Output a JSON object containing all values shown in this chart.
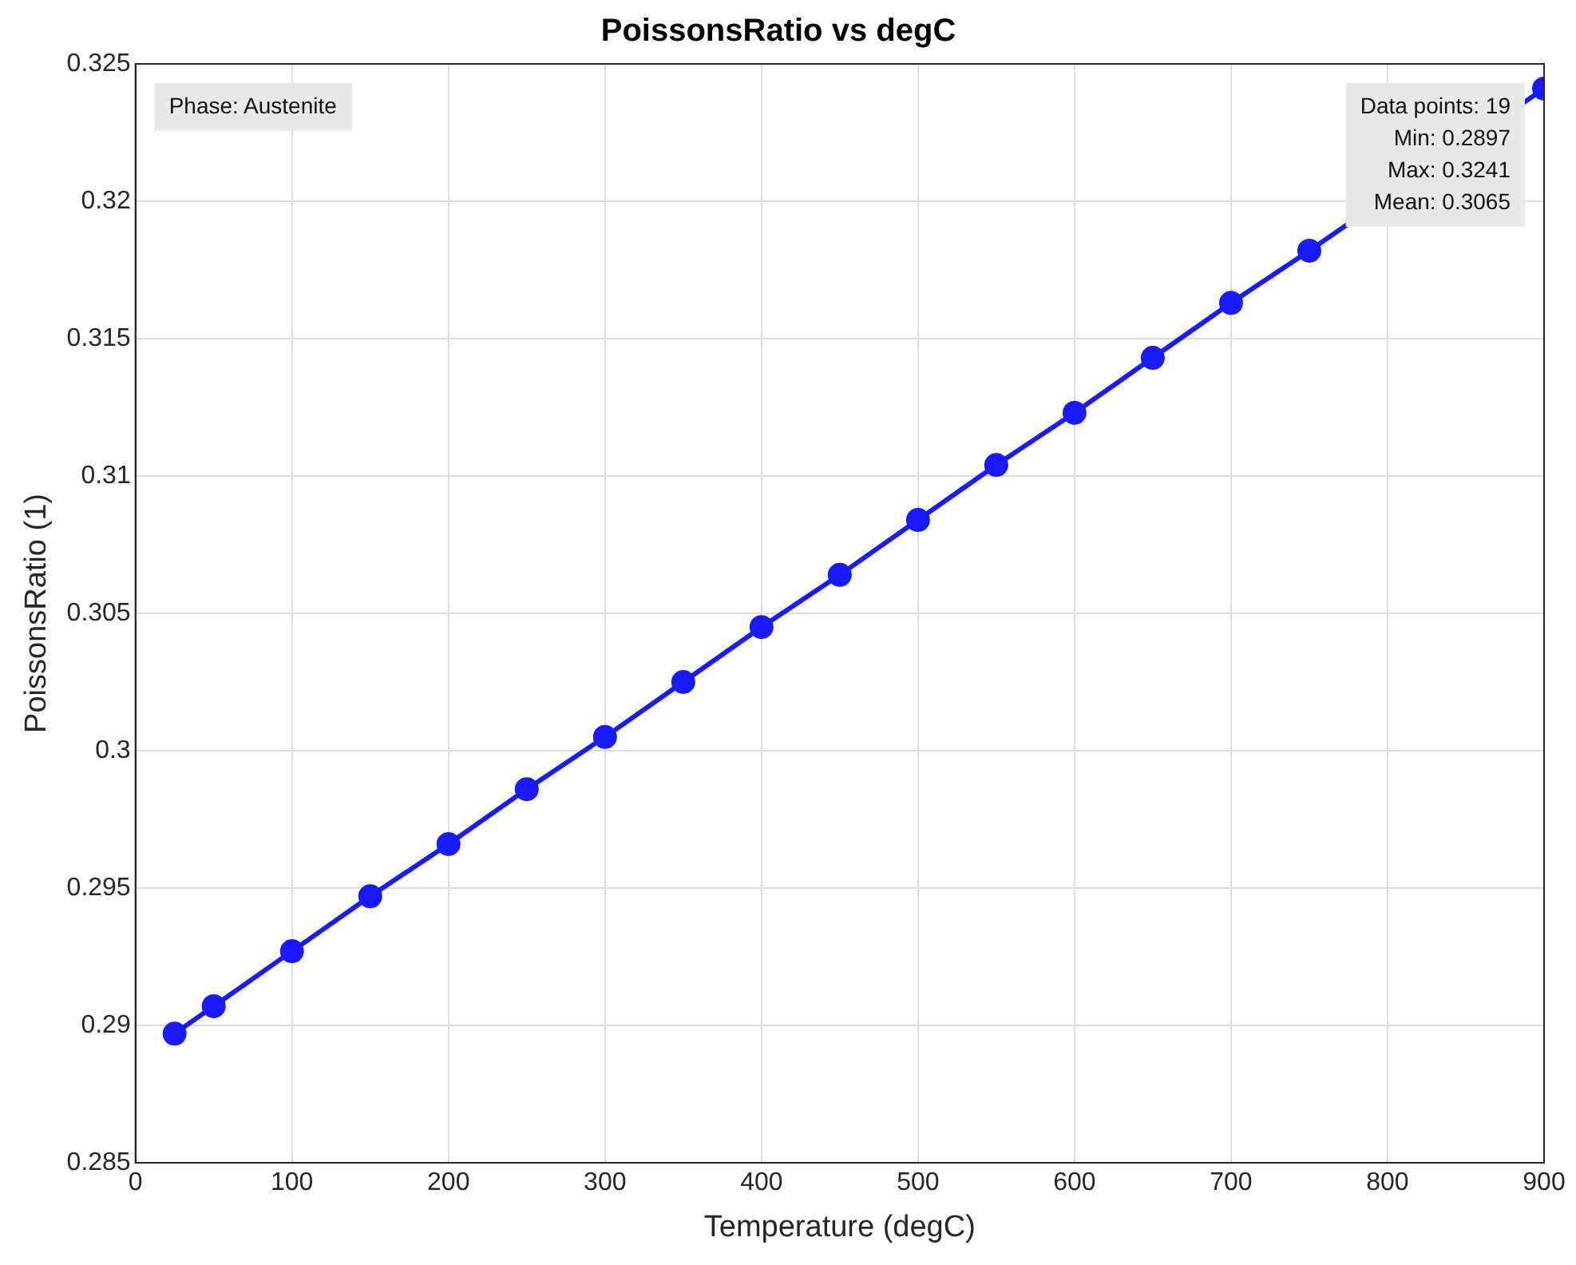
{
  "chart_data": {
    "type": "line",
    "title": "PoissonsRatio vs degC",
    "xlabel": "Temperature (degC)",
    "ylabel": "PoissonsRatio (1)",
    "x": [
      25,
      50,
      100,
      150,
      200,
      250,
      300,
      350,
      400,
      450,
      500,
      550,
      600,
      650,
      700,
      750,
      800,
      850,
      900
    ],
    "series": [
      {
        "color": "#1a1aff",
        "values": [
          0.2897,
          0.2907,
          0.2927,
          0.2947,
          0.2966,
          0.2986,
          0.3005,
          0.3025,
          0.3045,
          0.3064,
          0.3084,
          0.3104,
          0.3123,
          0.3143,
          0.3163,
          0.3182,
          null,
          null,
          0.3241
        ]
      }
    ],
    "xlim": [
      0,
      900
    ],
    "xticks": [
      0,
      100,
      200,
      300,
      400,
      500,
      600,
      700,
      800,
      900
    ],
    "ylim": [
      0.285,
      0.325
    ],
    "yticks": [
      0.285,
      0.29,
      0.295,
      0.3,
      0.305,
      0.31,
      0.315,
      0.32,
      0.325
    ],
    "grid": true,
    "legend": false,
    "marker": "circle",
    "line_style": "solid",
    "annotations": [
      "Phase: Austenite",
      "Data points: 19\nMin: 0.2897\nMax: 0.3241\nMean: 0.3065"
    ]
  }
}
